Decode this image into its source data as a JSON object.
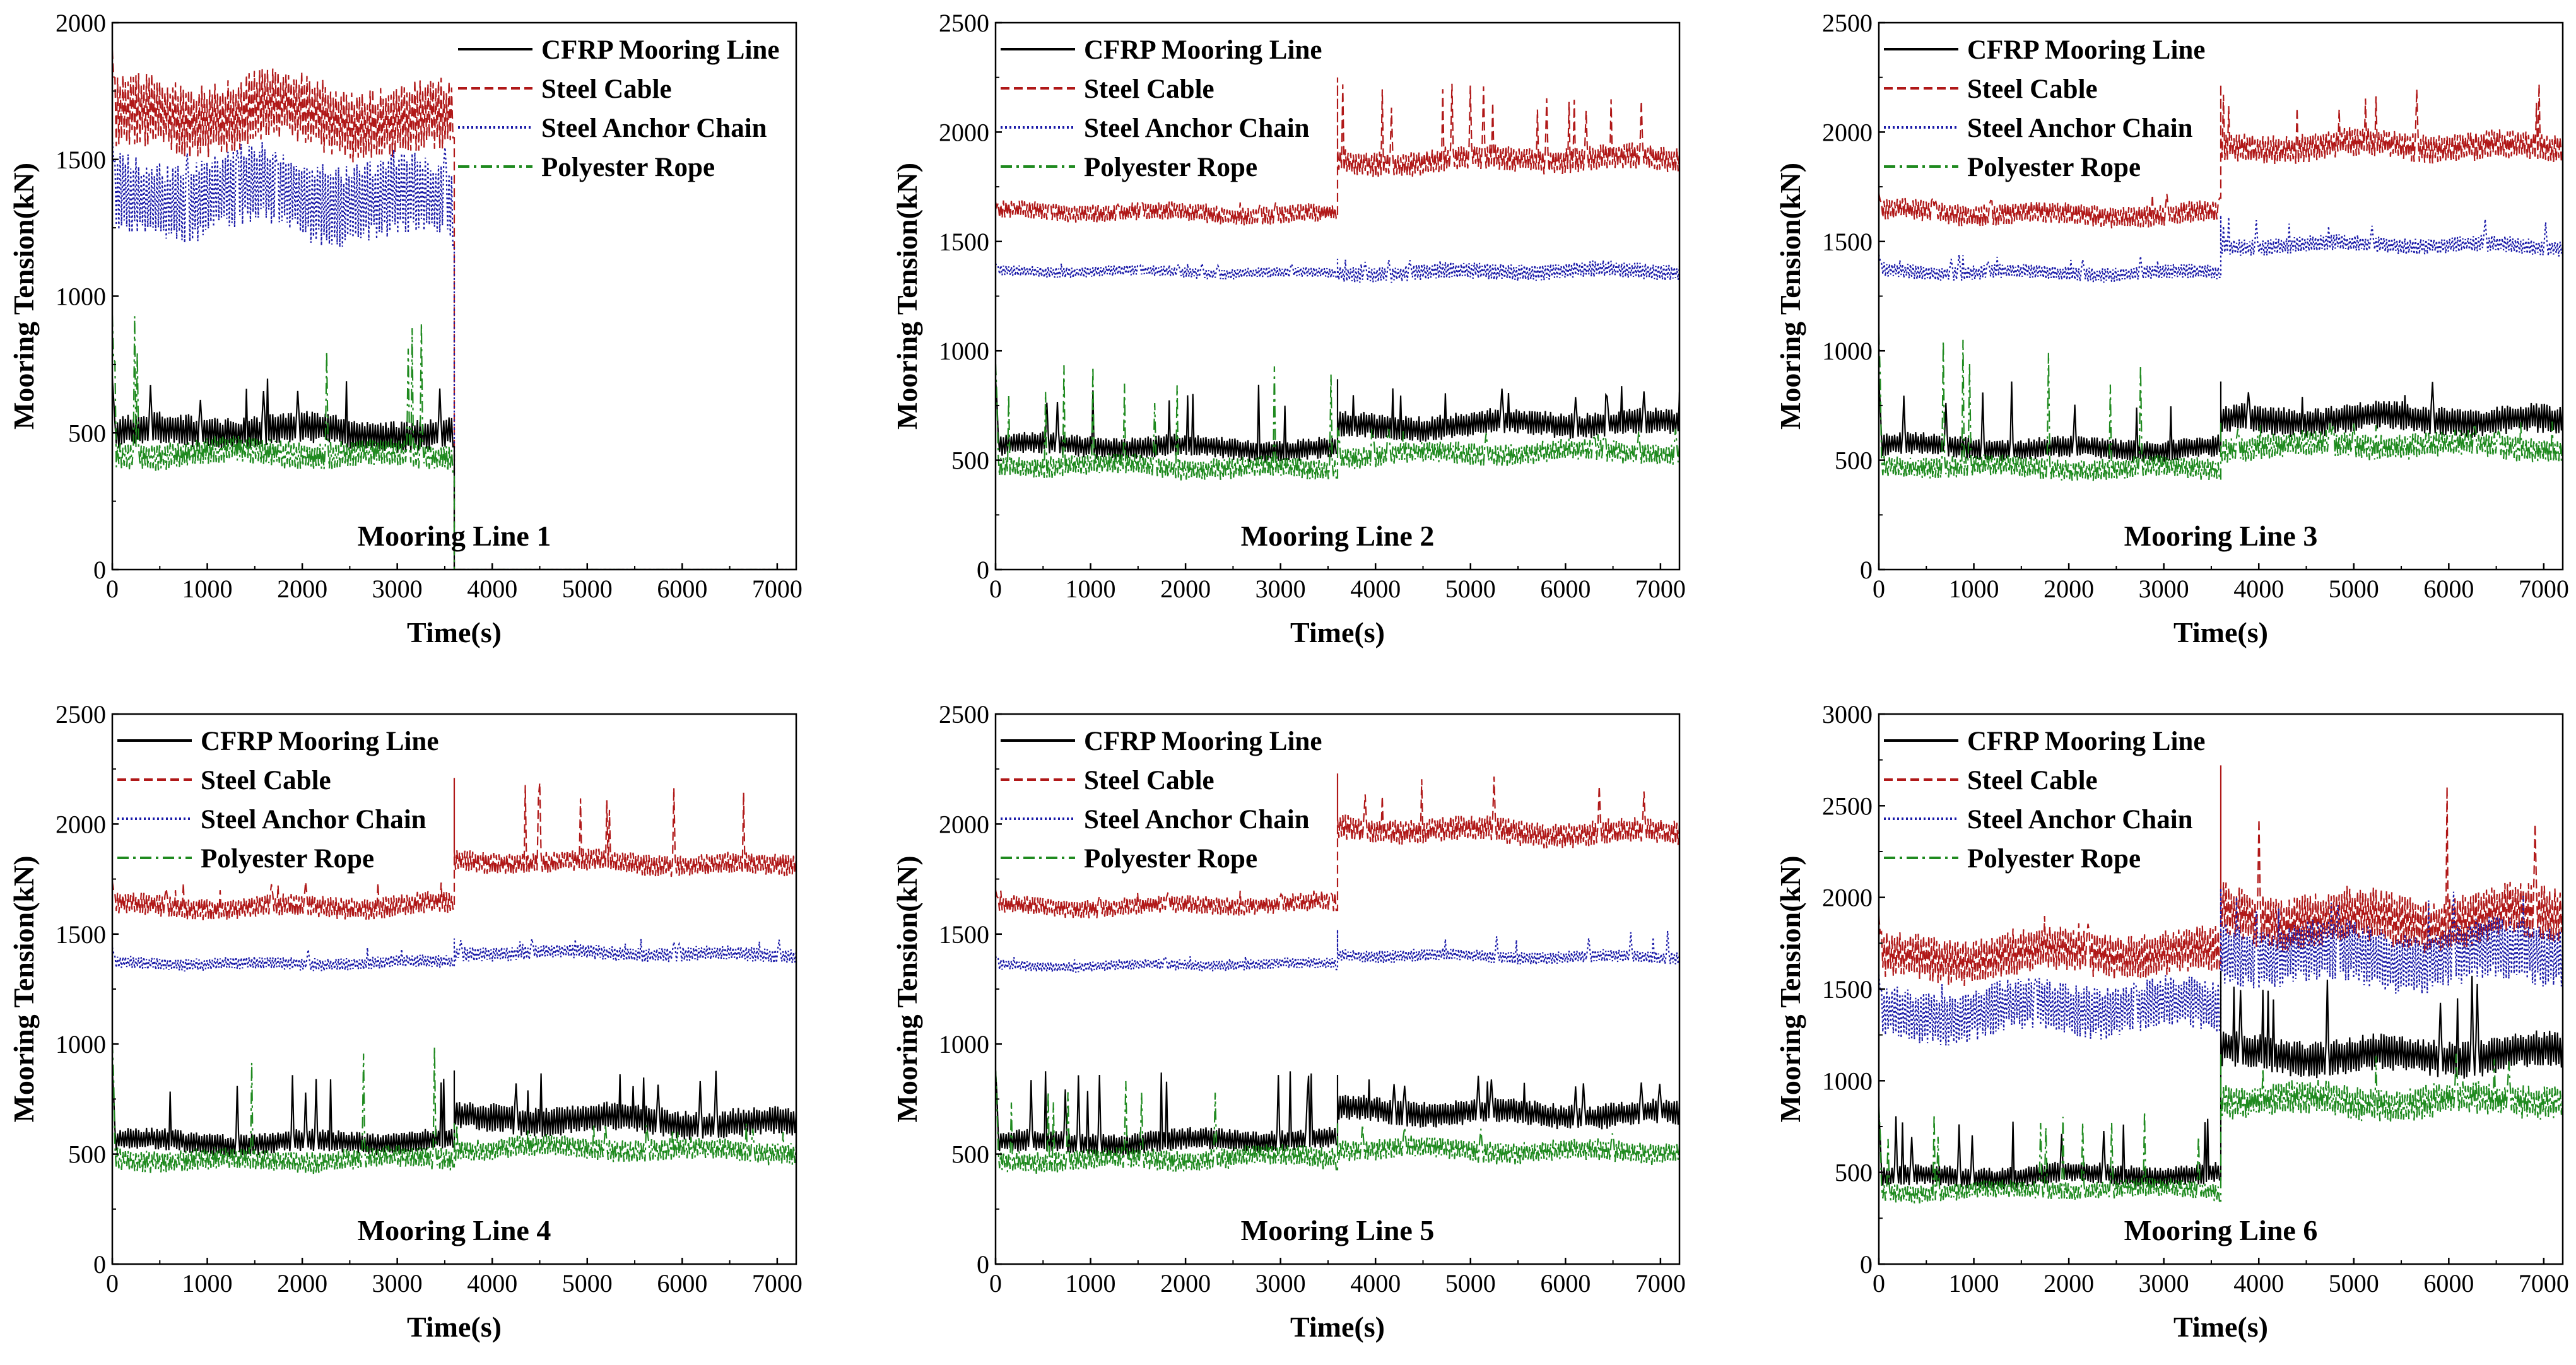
{
  "figure": {
    "xlabel": "Time(s)",
    "ylabel": "Mooring Tension(kN)"
  },
  "legend": [
    {
      "name": "CFRP Mooring Line",
      "color": "#000000",
      "dash": "solid"
    },
    {
      "name": "Steel Cable",
      "color": "#b01818",
      "dash": "dashed"
    },
    {
      "name": "Steel Anchor Chain",
      "color": "#1a1aa8",
      "dash": "dotted"
    },
    {
      "name": "Polyester Rope",
      "color": "#1f8a1f",
      "dash": "dashdot"
    }
  ],
  "chart_data": [
    {
      "type": "line",
      "title": "Mooring Line 1",
      "xlabel": "Time(s)",
      "ylabel": "Mooring Tension(kN)",
      "xlim": [
        0,
        7200
      ],
      "ylim": [
        0,
        2000
      ],
      "xticks": [
        0,
        1000,
        2000,
        3000,
        4000,
        5000,
        6000,
        7000
      ],
      "yticks": [
        0,
        500,
        1000,
        1500,
        2000
      ],
      "failure_time": 3600,
      "series": [
        {
          "name": "CFRP Mooring Line",
          "before": {
            "mean": 500,
            "amp": 70,
            "peak": 700
          },
          "after": {
            "mean": 0,
            "amp": 0
          }
        },
        {
          "name": "Steel Cable",
          "before": {
            "mean": 1650,
            "amp": 160,
            "peak": 1900
          },
          "after": {
            "mean": 0,
            "amp": 0
          }
        },
        {
          "name": "Steel Anchor Chain",
          "before": {
            "mean": 1350,
            "amp": 180,
            "peak": 1580
          },
          "after": {
            "mean": 0,
            "amp": 0
          }
        },
        {
          "name": "Polyester Rope",
          "before": {
            "mean": 420,
            "amp": 60,
            "peak": 930
          },
          "after": {
            "mean": 0,
            "amp": 0
          }
        }
      ],
      "grid": false,
      "legend_position": "top-right"
    },
    {
      "type": "line",
      "title": "Mooring Line 2",
      "xlabel": "Time(s)",
      "ylabel": "Mooring Tension(kN)",
      "xlim": [
        0,
        7200
      ],
      "ylim": [
        0,
        2500
      ],
      "xticks": [
        0,
        1000,
        2000,
        3000,
        4000,
        5000,
        6000,
        7000
      ],
      "yticks": [
        0,
        500,
        1000,
        1500,
        2000,
        2500
      ],
      "failure_time": 3600,
      "series": [
        {
          "name": "CFRP Mooring Line",
          "before": {
            "mean": 560,
            "amp": 60,
            "peak": 870
          },
          "after": {
            "mean": 660,
            "amp": 70,
            "peak": 870
          }
        },
        {
          "name": "Steel Cable",
          "before": {
            "mean": 1630,
            "amp": 50,
            "peak": 1680
          },
          "after": {
            "mean": 1870,
            "amp": 70,
            "peak": 2250
          }
        },
        {
          "name": "Steel Anchor Chain",
          "before": {
            "mean": 1360,
            "amp": 30,
            "peak": 1400
          },
          "after": {
            "mean": 1360,
            "amp": 45,
            "peak": 1420
          }
        },
        {
          "name": "Polyester Rope",
          "before": {
            "mean": 470,
            "amp": 60,
            "peak": 940
          },
          "after": {
            "mean": 530,
            "amp": 60,
            "peak": 650
          }
        }
      ],
      "grid": false,
      "legend_position": "top-left"
    },
    {
      "type": "line",
      "title": "Mooring Line 3",
      "xlabel": "Time(s)",
      "ylabel": "Mooring Tension(kN)",
      "xlim": [
        0,
        7200
      ],
      "ylim": [
        0,
        2500
      ],
      "xticks": [
        0,
        1000,
        2000,
        3000,
        4000,
        5000,
        6000,
        7000
      ],
      "yticks": [
        0,
        500,
        1000,
        1500,
        2000,
        2500
      ],
      "failure_time": 3600,
      "series": [
        {
          "name": "CFRP Mooring Line",
          "before": {
            "mean": 560,
            "amp": 60,
            "peak": 860
          },
          "after": {
            "mean": 680,
            "amp": 80,
            "peak": 860
          }
        },
        {
          "name": "Steel Cable",
          "before": {
            "mean": 1630,
            "amp": 60,
            "peak": 1720
          },
          "after": {
            "mean": 1930,
            "amp": 80,
            "peak": 2220
          }
        },
        {
          "name": "Steel Anchor Chain",
          "before": {
            "mean": 1360,
            "amp": 40,
            "peak": 1440
          },
          "after": {
            "mean": 1480,
            "amp": 45,
            "peak": 1620
          }
        },
        {
          "name": "Polyester Rope",
          "before": {
            "mean": 470,
            "amp": 60,
            "peak": 1080
          },
          "after": {
            "mean": 560,
            "amp": 70,
            "peak": 680
          }
        }
      ],
      "grid": false,
      "legend_position": "top-left"
    },
    {
      "type": "line",
      "title": "Mooring Line 4",
      "xlabel": "Time(s)",
      "ylabel": "Mooring Tension(kN)",
      "xlim": [
        0,
        7200
      ],
      "ylim": [
        0,
        2500
      ],
      "xticks": [
        0,
        1000,
        2000,
        3000,
        4000,
        5000,
        6000,
        7000
      ],
      "yticks": [
        0,
        500,
        1000,
        1500,
        2000,
        2500
      ],
      "failure_time": 3600,
      "series": [
        {
          "name": "CFRP Mooring Line",
          "before": {
            "mean": 560,
            "amp": 60,
            "peak": 880
          },
          "after": {
            "mean": 650,
            "amp": 80,
            "peak": 880
          }
        },
        {
          "name": "Steel Cable",
          "before": {
            "mean": 1630,
            "amp": 60,
            "peak": 1740
          },
          "after": {
            "mean": 1820,
            "amp": 60,
            "peak": 2210
          }
        },
        {
          "name": "Steel Anchor Chain",
          "before": {
            "mean": 1370,
            "amp": 35,
            "peak": 1440
          },
          "after": {
            "mean": 1410,
            "amp": 40,
            "peak": 1480
          }
        },
        {
          "name": "Polyester Rope",
          "before": {
            "mean": 480,
            "amp": 60,
            "peak": 1010
          },
          "after": {
            "mean": 520,
            "amp": 60,
            "peak": 640
          }
        }
      ],
      "grid": false,
      "legend_position": "top-left"
    },
    {
      "type": "line",
      "title": "Mooring Line 5",
      "xlabel": "Time(s)",
      "ylabel": "Mooring Tension(kN)",
      "xlim": [
        0,
        7200
      ],
      "ylim": [
        0,
        2500
      ],
      "xticks": [
        0,
        1000,
        2000,
        3000,
        4000,
        5000,
        6000,
        7000
      ],
      "yticks": [
        0,
        500,
        1000,
        1500,
        2000,
        2500
      ],
      "failure_time": 3600,
      "series": [
        {
          "name": "CFRP Mooring Line",
          "before": {
            "mean": 560,
            "amp": 60,
            "peak": 880
          },
          "after": {
            "mean": 690,
            "amp": 70,
            "peak": 860
          }
        },
        {
          "name": "Steel Cable",
          "before": {
            "mean": 1630,
            "amp": 50,
            "peak": 1700
          },
          "after": {
            "mean": 1970,
            "amp": 70,
            "peak": 2230
          }
        },
        {
          "name": "Steel Anchor Chain",
          "before": {
            "mean": 1360,
            "amp": 30,
            "peak": 1400
          },
          "after": {
            "mean": 1400,
            "amp": 35,
            "peak": 1520
          }
        },
        {
          "name": "Polyester Rope",
          "before": {
            "mean": 480,
            "amp": 60,
            "peak": 880
          },
          "after": {
            "mean": 520,
            "amp": 60,
            "peak": 640
          }
        }
      ],
      "grid": false,
      "legend_position": "top-left"
    },
    {
      "type": "line",
      "title": "Mooring Line 6",
      "xlabel": "Time(s)",
      "ylabel": "Mooring Tension(kN)",
      "xlim": [
        0,
        7200
      ],
      "ylim": [
        0,
        3000
      ],
      "xticks": [
        0,
        1000,
        2000,
        3000,
        4000,
        5000,
        6000,
        7000
      ],
      "yticks": [
        0,
        500,
        1000,
        1500,
        2000,
        2500,
        3000
      ],
      "failure_time": 3600,
      "series": [
        {
          "name": "CFRP Mooring Line",
          "before": {
            "mean": 480,
            "amp": 70,
            "peak": 820
          },
          "after": {
            "mean": 1150,
            "amp": 120,
            "peak": 1600
          }
        },
        {
          "name": "Steel Cable",
          "before": {
            "mean": 1680,
            "amp": 150,
            "peak": 1900
          },
          "after": {
            "mean": 1900,
            "amp": 180,
            "peak": 2720
          }
        },
        {
          "name": "Steel Anchor Chain",
          "before": {
            "mean": 1380,
            "amp": 170,
            "peak": 1580
          },
          "after": {
            "mean": 1700,
            "amp": 200,
            "peak": 2050
          }
        },
        {
          "name": "Polyester Rope",
          "before": {
            "mean": 400,
            "amp": 60,
            "peak": 860
          },
          "after": {
            "mean": 900,
            "amp": 110,
            "peak": 1150
          }
        }
      ],
      "grid": false,
      "legend_position": "top-left"
    }
  ]
}
